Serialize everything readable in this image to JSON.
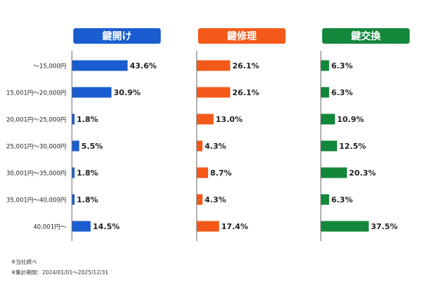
{
  "chart_data": {
    "type": "bar",
    "orientation": "horizontal",
    "categories": [
      "～15,000円",
      "15,001円～20,000円",
      "20,001円～25,000円",
      "25,001円～30,000円",
      "30,001円～35,000円",
      "35,001円～40,000円",
      "40,001円～"
    ],
    "unit": "%",
    "panels": [
      {
        "title": "鍵開け",
        "color": "#1a5dd0",
        "values": [
          43.6,
          30.9,
          1.8,
          5.5,
          1.8,
          1.8,
          14.5
        ],
        "labels": [
          "43.6%",
          "30.9%",
          "1.8%",
          "5.5%",
          "1.8%",
          "1.8%",
          "14.5%"
        ]
      },
      {
        "title": "鍵修理",
        "color": "#f4591a",
        "values": [
          26.1,
          26.1,
          13.0,
          4.3,
          8.7,
          4.3,
          17.4
        ],
        "labels": [
          "26.1%",
          "26.1%",
          "13.0%",
          "4.3%",
          "8.7%",
          "4.3%",
          "17.4%"
        ]
      },
      {
        "title": "鍵交換",
        "color": "#13873a",
        "values": [
          6.3,
          6.3,
          10.9,
          12.5,
          20.3,
          6.3,
          37.5
        ],
        "labels": [
          "6.3%",
          "6.3%",
          "10.9%",
          "12.5%",
          "20.3%",
          "6.3%",
          "37.5%"
        ]
      }
    ]
  },
  "footnotes": [
    "※当社調べ",
    "※集計期間：2024/01/01～2025/12/31"
  ]
}
